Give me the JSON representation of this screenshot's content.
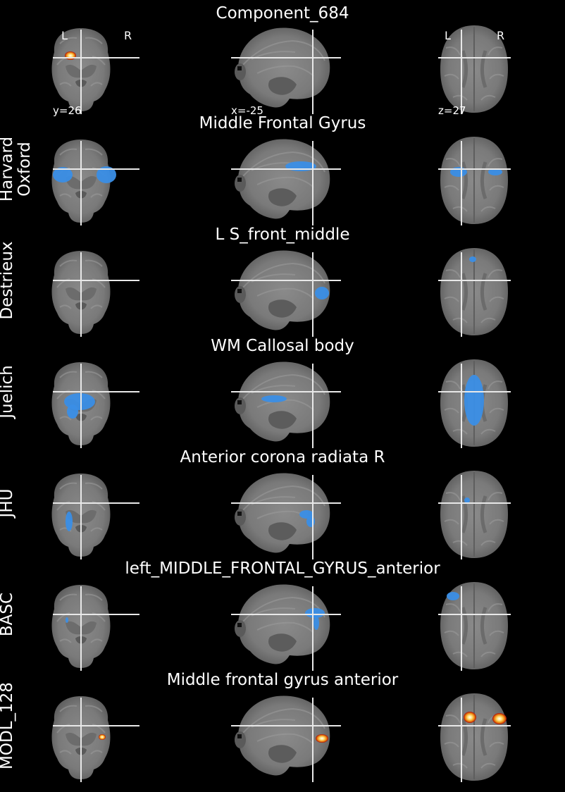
{
  "figure": {
    "header": {
      "title": "Component_684",
      "orientation_left": "L",
      "orientation_right": "R",
      "coord_y": "y=26",
      "coord_x": "x=-25",
      "coord_z": "z=27"
    },
    "rows": [
      {
        "atlas": "Harvard\nOxford",
        "region": "Middle Frontal Gyrus",
        "overlay_color": "#3a8ee6"
      },
      {
        "atlas": "Destrieux",
        "region": "L S_front_middle",
        "overlay_color": "#3a8ee6"
      },
      {
        "atlas": "Juelich",
        "region": "WM Callosal body",
        "overlay_color": "#3a8ee6"
      },
      {
        "atlas": "JHU",
        "region": "Anterior corona radiata R",
        "overlay_color": "#3a8ee6"
      },
      {
        "atlas": "BASC",
        "region": "left_MIDDLE_FRONTAL_GYRUS_anterior",
        "overlay_color": "#3a8ee6"
      },
      {
        "atlas": "MODL_128",
        "region": "Middle frontal gyrus anterior",
        "overlay_color": "hot"
      }
    ]
  }
}
